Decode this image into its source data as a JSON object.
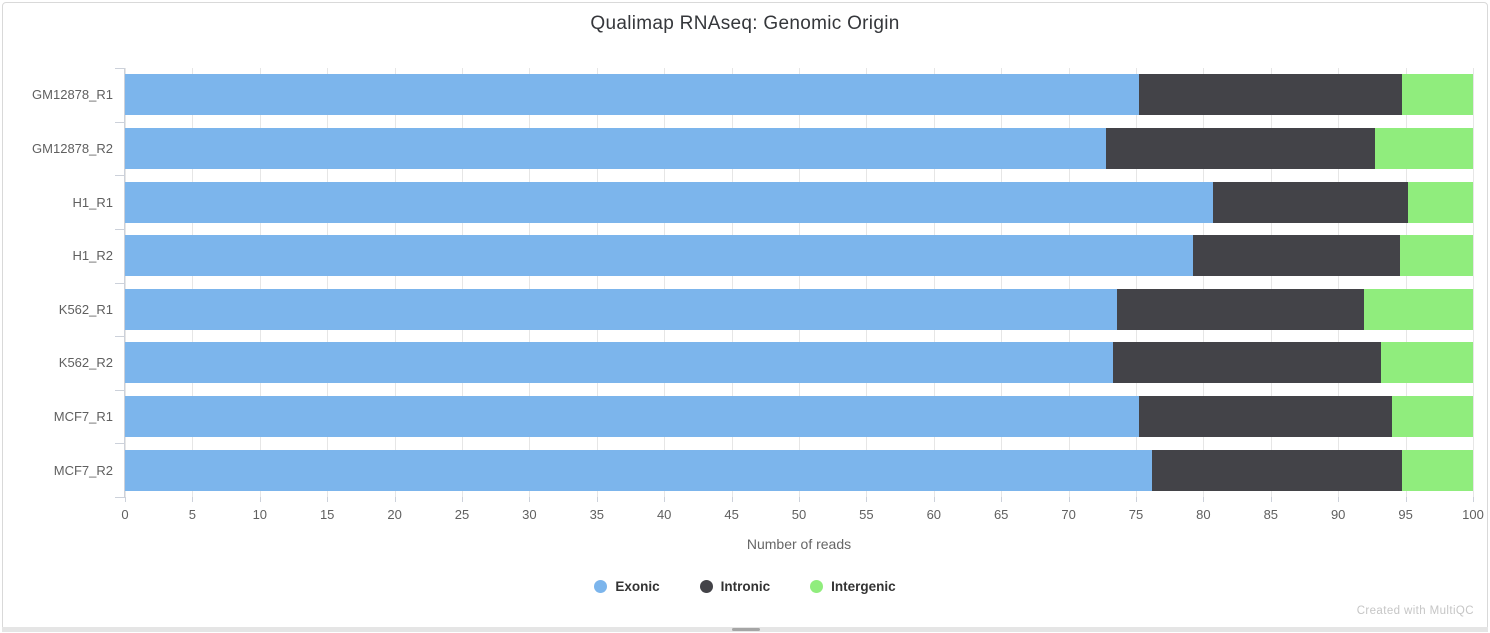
{
  "title": "Qualimap RNAseq: Genomic Origin",
  "xlabel": "Number of reads",
  "watermark": "Created with MultiQC",
  "colors": {
    "exonic": "#7cb5ec",
    "intronic": "#434348",
    "intergenic": "#90ed7d",
    "gridline": "#e6e6e6",
    "axis_line": "#ccd1da",
    "tick_label": "#606060"
  },
  "chart_data": {
    "type": "bar",
    "orientation": "horizontal",
    "stacking": "percent",
    "title": "Qualimap RNAseq: Genomic Origin",
    "xlabel": "Number of reads",
    "ylabel": "",
    "xlim": [
      0,
      100
    ],
    "grid": true,
    "legend_position": "bottom-center",
    "categories": [
      "GM12878_R1",
      "GM12878_R2",
      "H1_R1",
      "H1_R2",
      "K562_R1",
      "K562_R2",
      "MCF7_R1",
      "MCF7_R2"
    ],
    "xticks": [
      0,
      5,
      10,
      15,
      20,
      25,
      30,
      35,
      40,
      45,
      50,
      55,
      60,
      65,
      70,
      75,
      80,
      85,
      90,
      95,
      100
    ],
    "series": [
      {
        "name": "Exonic",
        "color": "#7cb5ec",
        "values": [
          75.2,
          72.8,
          80.7,
          79.2,
          73.6,
          73.3,
          75.2,
          76.2
        ]
      },
      {
        "name": "Intronic",
        "color": "#434348",
        "values": [
          19.5,
          19.9,
          14.5,
          15.4,
          18.3,
          19.9,
          18.8,
          18.5
        ]
      },
      {
        "name": "Intergenic",
        "color": "#90ed7d",
        "values": [
          5.3,
          7.3,
          4.8,
          5.4,
          8.1,
          6.8,
          6.0,
          5.3
        ]
      }
    ]
  }
}
